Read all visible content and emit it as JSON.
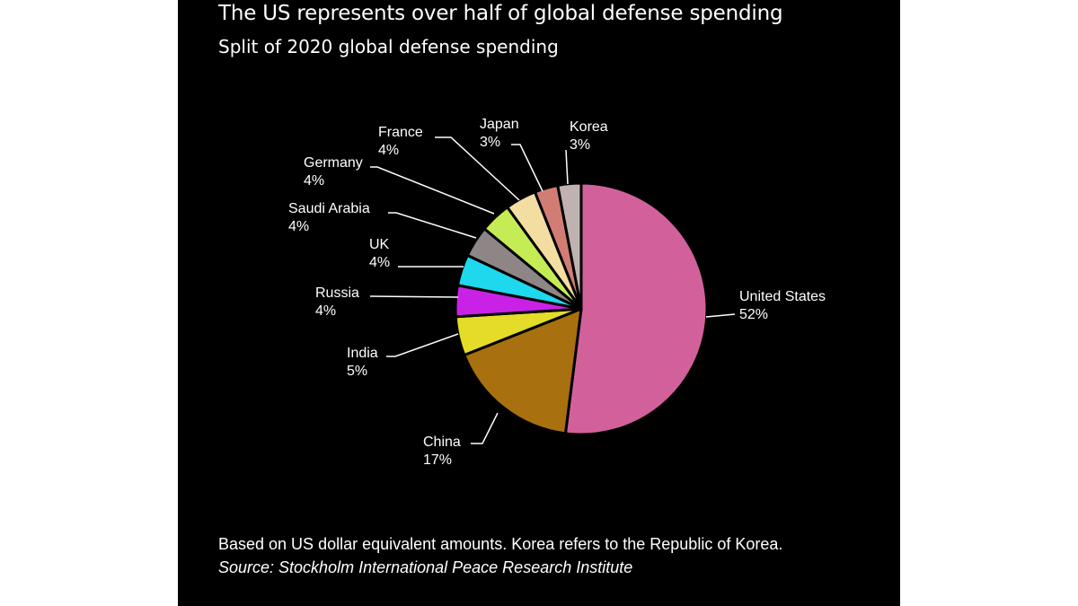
{
  "title": "The US represents over half of global defense spending",
  "subtitle": "Split of 2020 global defense spending",
  "note": "Based on US dollar equivalent amounts. Korea refers to the Republic of Korea.",
  "source": "Source: Stockholm International Peace Research Institute",
  "chart_data": {
    "type": "pie",
    "title": "The US represents over half of global defense spending",
    "subtitle": "Split of 2020 global defense spending",
    "unit": "%",
    "start": "12 o'clock, clockwise",
    "slices": [
      {
        "name": "United States",
        "label": "52%",
        "value": 52,
        "color": "#d2619b"
      },
      {
        "name": "China",
        "label": "17%",
        "value": 17,
        "color": "#a8700e"
      },
      {
        "name": "India",
        "label": "5%",
        "value": 5,
        "color": "#e4dc28"
      },
      {
        "name": "Russia",
        "label": "4%",
        "value": 4,
        "color": "#c922e6"
      },
      {
        "name": "UK",
        "label": "4%",
        "value": 4,
        "color": "#1ed8ee"
      },
      {
        "name": "Saudi Arabia",
        "label": "4%",
        "value": 4,
        "color": "#8d8586"
      },
      {
        "name": "Germany",
        "label": "4%",
        "value": 4,
        "color": "#c6ec55"
      },
      {
        "name": "France",
        "label": "4%",
        "value": 4,
        "color": "#f3dda0"
      },
      {
        "name": "Japan",
        "label": "3%",
        "value": 3,
        "color": "#d27d73"
      },
      {
        "name": "Korea",
        "label": "3%",
        "value": 3,
        "color": "#bfb2b0"
      }
    ]
  }
}
